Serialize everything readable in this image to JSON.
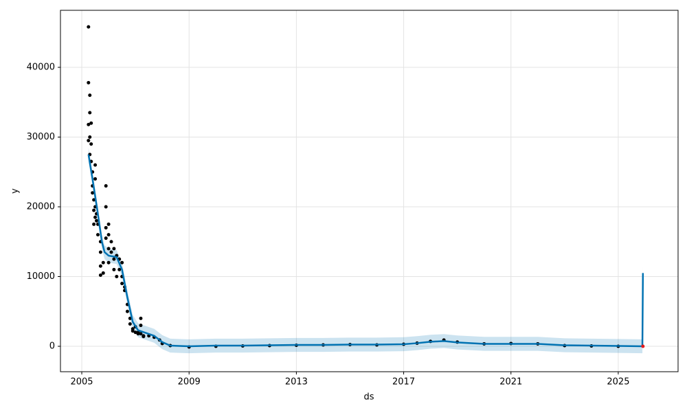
{
  "chart_data": {
    "type": "forecast",
    "x_label": "ds",
    "y_label": "y",
    "xlim": [
      2004.205,
      2027.23
    ],
    "ylim": [
      -3645,
      48177
    ],
    "xticks": [
      2005,
      2009,
      2013,
      2017,
      2021,
      2025
    ],
    "yticks": [
      0,
      10000,
      20000,
      30000,
      40000
    ],
    "grid": true,
    "series": [
      {
        "type": "band",
        "color": "#0072B2",
        "x": [
          2005.25,
          2005.4,
          2005.6,
          2005.75,
          2005.85,
          2006.0,
          2006.3,
          2006.5,
          2006.7,
          2006.9,
          2007.1,
          2007.4,
          2007.7,
          2008.0,
          2008.3,
          2009,
          2010,
          2011,
          2012,
          2013,
          2014,
          2015,
          2016,
          2017,
          2017.5,
          2018,
          2018.5,
          2019,
          2020,
          2021,
          2022,
          2023,
          2024,
          2025,
          2025.9,
          2025.92
        ],
        "lower": [
          26500,
          23000,
          18000,
          14000,
          12500,
          12000,
          11800,
          10000,
          6000,
          2500,
          1300,
          900,
          500,
          -400,
          -900,
          -1000,
          -900,
          -900,
          -850,
          -800,
          -800,
          -750,
          -750,
          -700,
          -550,
          -350,
          -250,
          -450,
          -650,
          -650,
          -650,
          -850,
          -900,
          -950,
          -1000,
          9500
        ],
        "upper": [
          28500,
          25000,
          20000,
          16000,
          14500,
          14000,
          13800,
          12000,
          8000,
          4500,
          3300,
          2900,
          2500,
          1600,
          1100,
          1000,
          1100,
          1100,
          1150,
          1200,
          1200,
          1250,
          1250,
          1300,
          1450,
          1650,
          1750,
          1550,
          1350,
          1350,
          1350,
          1150,
          1100,
          1050,
          1000,
          11500
        ]
      },
      {
        "type": "scatter",
        "color": "#000000",
        "x": [
          2005.25,
          2005.25,
          2005.25,
          2005.25,
          2005.3,
          2005.3,
          2005.3,
          2005.3,
          2005.35,
          2005.35,
          2005.35,
          2005.4,
          2005.4,
          2005.4,
          2005.45,
          2005.45,
          2005.45,
          2005.5,
          2005.5,
          2005.5,
          2005.5,
          2005.55,
          2005.55,
          2005.6,
          2005.6,
          2005.7,
          2005.7,
          2005.7,
          2005.7,
          2005.8,
          2005.8,
          2005.9,
          2005.9,
          2005.9,
          2005.9,
          2006.0,
          2006.0,
          2006.0,
          2006.0,
          2006.1,
          2006.1,
          2006.2,
          2006.2,
          2006.2,
          2006.3,
          2006.3,
          2006.4,
          2006.4,
          2006.5,
          2006.5,
          2006.5,
          2006.6,
          2006.6,
          2006.7,
          2006.7,
          2006.8,
          2006.8,
          2006.9,
          2006.9,
          2007.0,
          2007.0,
          2007.1,
          2007.1,
          2007.2,
          2007.2,
          2007.2,
          2007.3,
          2007.3,
          2007.5,
          2007.7,
          2007.9,
          2008.0,
          2008.3,
          2009,
          2010,
          2011,
          2012,
          2013,
          2014,
          2015,
          2016,
          2017,
          2017.5,
          2018,
          2018.5,
          2019,
          2020,
          2021,
          2022,
          2023,
          2024,
          2025
        ],
        "values": [
          45800,
          37800,
          31800,
          29500,
          36000,
          33500,
          30000,
          27500,
          32000,
          29000,
          26500,
          25000,
          23000,
          22000,
          21000,
          19500,
          17500,
          26000,
          24000,
          20000,
          18500,
          19000,
          18000,
          17500,
          16000,
          15000,
          13500,
          11500,
          10200,
          12000,
          10500,
          23000,
          20000,
          17000,
          15500,
          17500,
          16000,
          14000,
          12000,
          15000,
          13500,
          14000,
          12500,
          11000,
          13000,
          10000,
          12500,
          11000,
          12000,
          10000,
          9000,
          8500,
          8000,
          6000,
          5000,
          4000,
          3200,
          2500,
          2200,
          2000,
          2800,
          2000,
          1800,
          4000,
          3000,
          1800,
          1500,
          1400,
          1500,
          1300,
          900,
          400,
          100,
          -100,
          0,
          50,
          100,
          150,
          200,
          250,
          200,
          300,
          450,
          700,
          900,
          600,
          350,
          400,
          350,
          100,
          50,
          0
        ]
      },
      {
        "type": "line",
        "color": "#0072B2",
        "x": [
          2005.25,
          2005.4,
          2005.6,
          2005.75,
          2005.85,
          2006.0,
          2006.3,
          2006.5,
          2006.7,
          2006.9,
          2007.1,
          2007.4,
          2007.7,
          2008.0,
          2008.3,
          2009,
          2010,
          2011,
          2012,
          2013,
          2014,
          2015,
          2016,
          2017,
          2017.5,
          2018,
          2018.5,
          2019,
          2020,
          2021,
          2022,
          2023,
          2024,
          2025,
          2025.9,
          2025.92
        ],
        "values": [
          27500,
          24000,
          19000,
          15000,
          13500,
          13000,
          12800,
          11000,
          7000,
          3500,
          2300,
          1900,
          1500,
          600,
          100,
          0,
          100,
          100,
          150,
          200,
          200,
          250,
          250,
          300,
          450,
          650,
          750,
          550,
          350,
          350,
          350,
          150,
          100,
          50,
          0,
          10500
        ]
      },
      {
        "type": "scatter",
        "color": "#e41a1c",
        "x": [
          2025.92
        ],
        "values": [
          0
        ]
      }
    ]
  }
}
